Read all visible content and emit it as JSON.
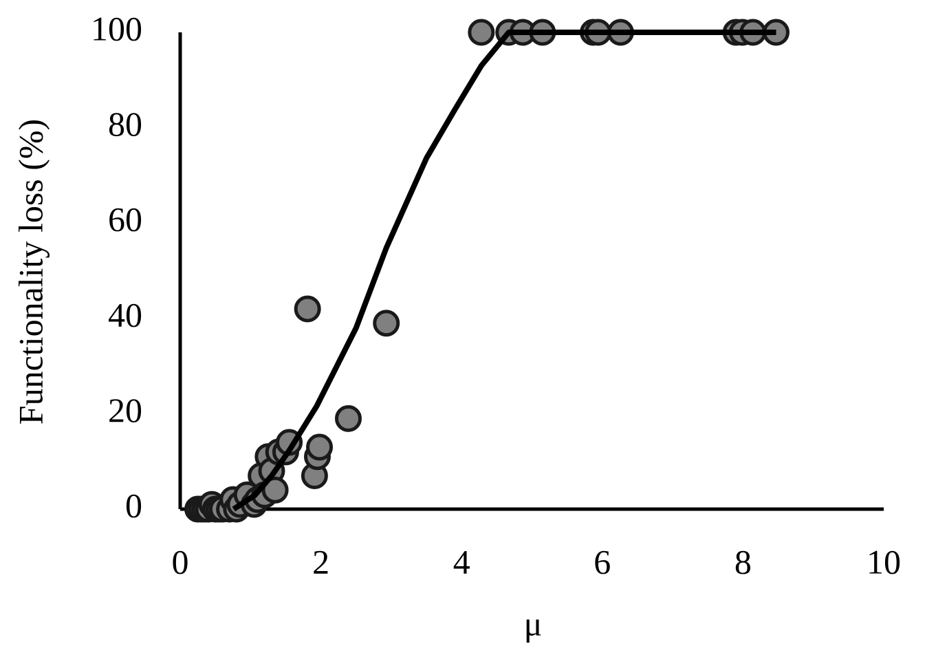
{
  "chart_data": {
    "type": "scatter",
    "xlabel": "μ",
    "ylabel": "Functionality loss (%)",
    "xlim": [
      0,
      10
    ],
    "xticks": [
      0,
      2,
      4,
      6,
      8,
      10
    ],
    "ylim": [
      0,
      100
    ],
    "yticks": [
      0,
      20,
      40,
      60,
      80,
      100
    ],
    "series": [
      {
        "type": "scatter",
        "color": "#808080",
        "x": [
          0.25,
          0.3,
          0.35,
          0.4,
          0.45,
          0.5,
          0.55,
          0.6,
          0.7,
          0.75,
          0.8,
          0.85,
          0.95,
          1.05,
          1.1,
          1.15,
          1.2,
          1.25,
          1.3,
          1.35,
          1.4,
          1.5,
          1.55,
          1.81,
          1.91,
          1.95,
          1.98,
          2.39,
          2.93,
          4.28,
          4.67,
          4.87,
          5.15,
          5.87,
          5.94,
          6.26,
          7.9,
          7.99,
          8.14,
          8.47
        ],
        "values": [
          0,
          0,
          0,
          0,
          1,
          0,
          0,
          0,
          0,
          2,
          0,
          1,
          3,
          1,
          2,
          7,
          3,
          11,
          8,
          4,
          12,
          12,
          14,
          42,
          7,
          11,
          13,
          19,
          39,
          100,
          100,
          100,
          100,
          100,
          100,
          100,
          100,
          100,
          100,
          100
        ]
      },
      {
        "type": "line",
        "color": "#000000",
        "x": [
          0.76,
          1.06,
          1.3,
          1.55,
          1.94,
          2.5,
          2.93,
          3.5,
          3.9,
          4.28,
          4.67,
          8.47
        ],
        "values": [
          0,
          2.9,
          7,
          12.3,
          21.6,
          38,
          54.8,
          73.6,
          83.7,
          93,
          100,
          100
        ]
      }
    ]
  }
}
